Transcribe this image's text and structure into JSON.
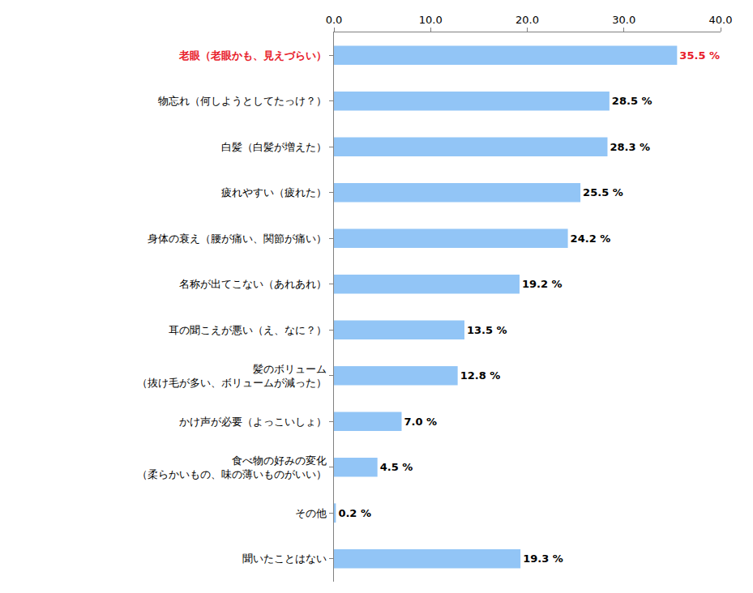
{
  "chart_data": {
    "type": "bar",
    "orientation": "horizontal",
    "categories": [
      "老眼（老眼かも、見えづらい）",
      "物忘れ（何しようとしてたっけ？）",
      "白髪（白髪が増えた）",
      "疲れやすい（疲れた）",
      "身体の衰え（腰が痛い、関節が痛い）",
      "名称が出てこない（あれあれ）",
      "耳の聞こえが悪い（え、なに？）",
      "髪のボリューム\n（抜け毛が多い、ボリュームが減った）",
      "かけ声が必要（よっこいしょ）",
      "食べ物の好みの変化\n（柔らかいもの、味の薄いものがいい）",
      "その他",
      "聞いたことはない"
    ],
    "values": [
      35.5,
      28.5,
      28.3,
      25.5,
      24.2,
      19.2,
      13.5,
      12.8,
      7.0,
      4.5,
      0.2,
      19.3
    ],
    "value_labels": [
      "35.5 %",
      "28.5 %",
      "28.3 %",
      "25.5 %",
      "24.2 %",
      "19.2 %",
      "13.5 %",
      "12.8 %",
      "7.0 %",
      "4.5 %",
      "0.2 %",
      "19.3 %"
    ],
    "data_labels": true,
    "color": "#92c5f6",
    "xlim": [
      0,
      40
    ],
    "xticks": [
      {
        "value": 0,
        "label": "0.0"
      },
      {
        "value": 10,
        "label": "10.0"
      },
      {
        "value": 20,
        "label": "20.0"
      },
      {
        "value": 30,
        "label": "30.0"
      },
      {
        "value": 40,
        "label": "40.0"
      }
    ],
    "grid": false
  }
}
